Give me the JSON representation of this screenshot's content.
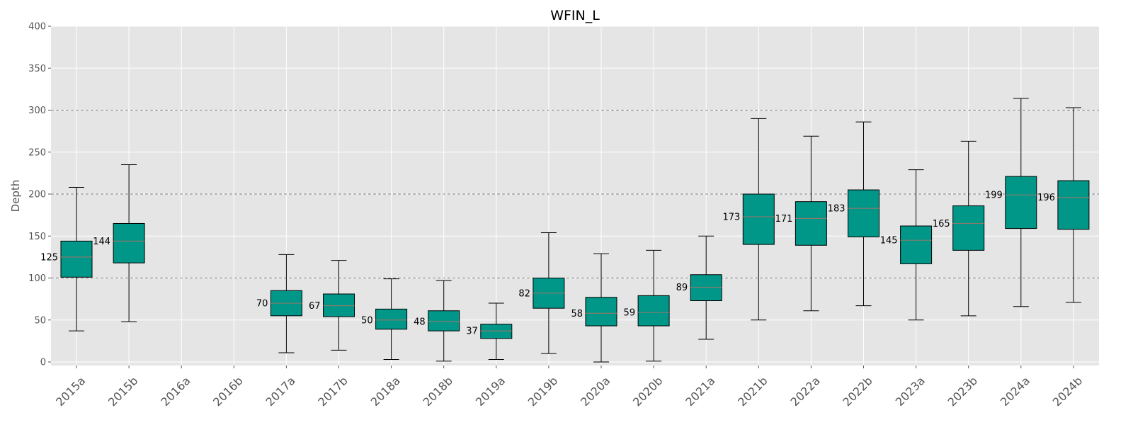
{
  "chart_data": {
    "type": "box",
    "title": "WFIN_L",
    "xlabel": "",
    "ylabel": "Depth",
    "ylim": [
      0,
      400
    ],
    "yticks": [
      0,
      50,
      100,
      150,
      200,
      250,
      300,
      350,
      400
    ],
    "reference_lines": [
      100,
      200,
      300
    ],
    "grid": true,
    "colors": {
      "box_fill": "#009688",
      "median": "#8a7a6a",
      "panel_bg": "#e5e5e5",
      "grid": "#ffffff",
      "ref_line": "#888888"
    },
    "categories": [
      "2015a",
      "2015b",
      "2016a",
      "2016b",
      "2017a",
      "2017b",
      "2018a",
      "2018b",
      "2019a",
      "2019b",
      "2020a",
      "2020b",
      "2021a",
      "2021b",
      "2022a",
      "2022b",
      "2023a",
      "2023b",
      "2024a",
      "2024b"
    ],
    "boxes": [
      {
        "category": "2015a",
        "whisker_low": 37,
        "q1": 101,
        "median": 125,
        "q3": 144,
        "whisker_high": 208,
        "label": "125"
      },
      {
        "category": "2015b",
        "whisker_low": 48,
        "q1": 118,
        "median": 144,
        "q3": 165,
        "whisker_high": 235,
        "label": "144"
      },
      {
        "category": "2016a",
        "whisker_low": null,
        "q1": null,
        "median": null,
        "q3": null,
        "whisker_high": null,
        "label": ""
      },
      {
        "category": "2016b",
        "whisker_low": null,
        "q1": null,
        "median": null,
        "q3": null,
        "whisker_high": null,
        "label": ""
      },
      {
        "category": "2017a",
        "whisker_low": 11,
        "q1": 55,
        "median": 70,
        "q3": 85,
        "whisker_high": 128,
        "label": "70"
      },
      {
        "category": "2017b",
        "whisker_low": 14,
        "q1": 54,
        "median": 67,
        "q3": 81,
        "whisker_high": 121,
        "label": "67"
      },
      {
        "category": "2018a",
        "whisker_low": 3,
        "q1": 39,
        "median": 50,
        "q3": 63,
        "whisker_high": 99,
        "label": "50"
      },
      {
        "category": "2018b",
        "whisker_low": 1,
        "q1": 37,
        "median": 48,
        "q3": 61,
        "whisker_high": 97,
        "label": "48"
      },
      {
        "category": "2019a",
        "whisker_low": 3,
        "q1": 28,
        "median": 37,
        "q3": 45,
        "whisker_high": 70,
        "label": "37"
      },
      {
        "category": "2019b",
        "whisker_low": 10,
        "q1": 64,
        "median": 82,
        "q3": 100,
        "whisker_high": 154,
        "label": "82"
      },
      {
        "category": "2020a",
        "whisker_low": 0,
        "q1": 43,
        "median": 58,
        "q3": 77,
        "whisker_high": 129,
        "label": "58"
      },
      {
        "category": "2020b",
        "whisker_low": 1,
        "q1": 43,
        "median": 59,
        "q3": 79,
        "whisker_high": 133,
        "label": "59"
      },
      {
        "category": "2021a",
        "whisker_low": 27,
        "q1": 73,
        "median": 89,
        "q3": 104,
        "whisker_high": 150,
        "label": "89"
      },
      {
        "category": "2021b",
        "whisker_low": 50,
        "q1": 140,
        "median": 173,
        "q3": 200,
        "whisker_high": 290,
        "label": "173"
      },
      {
        "category": "2022a",
        "whisker_low": 61,
        "q1": 139,
        "median": 171,
        "q3": 191,
        "whisker_high": 269,
        "label": "171"
      },
      {
        "category": "2022b",
        "whisker_low": 67,
        "q1": 149,
        "median": 183,
        "q3": 205,
        "whisker_high": 286,
        "label": "183"
      },
      {
        "category": "2023a",
        "whisker_low": 50,
        "q1": 117,
        "median": 145,
        "q3": 162,
        "whisker_high": 229,
        "label": "145"
      },
      {
        "category": "2023b",
        "whisker_low": 55,
        "q1": 133,
        "median": 165,
        "q3": 186,
        "whisker_high": 263,
        "label": "165"
      },
      {
        "category": "2024a",
        "whisker_low": 66,
        "q1": 159,
        "median": 199,
        "q3": 221,
        "whisker_high": 314,
        "label": "199"
      },
      {
        "category": "2024b",
        "whisker_low": 71,
        "q1": 158,
        "median": 196,
        "q3": 216,
        "whisker_high": 303,
        "label": "196"
      }
    ]
  }
}
